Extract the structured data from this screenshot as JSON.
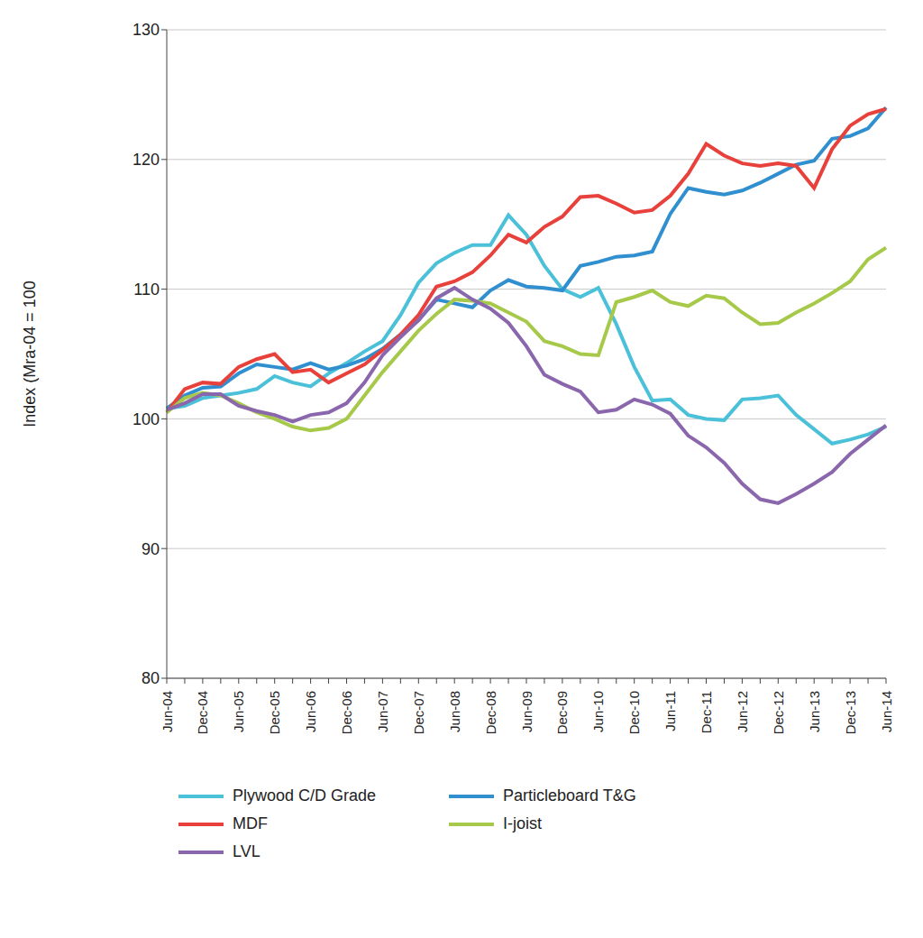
{
  "chart_data": {
    "type": "line",
    "y_label": "Index (Mra-04 = 100",
    "categories": [
      "Jun-04",
      null,
      "Dec-04",
      null,
      "Jun-05",
      null,
      "Dec-05",
      null,
      "Jun-06",
      null,
      "Dec-06",
      null,
      "Jun-07",
      null,
      "Dec-07",
      null,
      "Jun-08",
      null,
      "Dec-08",
      null,
      "Jun-09",
      null,
      "Dec-09",
      null,
      "Jun-10",
      null,
      "Dec-10",
      null,
      "Jun-11",
      null,
      "Dec-11",
      null,
      "Jun-12",
      null,
      "Dec-12",
      null,
      "Jun-13",
      null,
      "Dec-13",
      null,
      "Jun-14"
    ],
    "ylim": [
      80,
      130
    ],
    "yticks": [
      80,
      90,
      100,
      110,
      120,
      130
    ],
    "grid": true,
    "legend": "bottom",
    "series": [
      {
        "name": "Plywood C/D Grade",
        "color": "#4bc0d9",
        "values": [
          100.8,
          101,
          101.6,
          101.8,
          102,
          102.3,
          103.3,
          102.8,
          102.5,
          103.5,
          104.3,
          105.2,
          106,
          108,
          110.5,
          112,
          112.8,
          113.4,
          113.4,
          115.7,
          114.2,
          111.8,
          110,
          109.4,
          110.1,
          107.3,
          104,
          101.4,
          101.5,
          100.3,
          100,
          99.9,
          101.5,
          101.6,
          101.8,
          100.3,
          99.2,
          98.1,
          98.4,
          98.8,
          99.4
        ]
      },
      {
        "name": "Particleboard T&G",
        "color": "#2f8fcf",
        "values": [
          100.8,
          101.8,
          102.4,
          102.5,
          103.5,
          104.2,
          104,
          103.8,
          104.3,
          103.8,
          104.1,
          104.6,
          105.4,
          106.5,
          107.6,
          109.2,
          108.9,
          108.6,
          109.9,
          110.7,
          110.2,
          110.1,
          109.9,
          111.8,
          112.1,
          112.5,
          112.6,
          112.9,
          115.8,
          117.8,
          117.5,
          117.3,
          117.6,
          118.2,
          118.9,
          119.6,
          119.9,
          121.6,
          121.8,
          122.4,
          124
        ]
      },
      {
        "name": "MDF",
        "color": "#e8413c",
        "values": [
          100.5,
          102.3,
          102.8,
          102.7,
          104,
          104.6,
          105,
          103.6,
          103.8,
          102.8,
          103.5,
          104.2,
          105.3,
          106.5,
          108,
          110.2,
          110.6,
          111.3,
          112.6,
          114.2,
          113.6,
          114.8,
          115.6,
          117.1,
          117.2,
          116.6,
          115.9,
          116.1,
          117.2,
          118.9,
          121.2,
          120.3,
          119.7,
          119.5,
          119.7,
          119.5,
          117.8,
          120.8,
          122.6,
          123.5,
          123.9
        ]
      },
      {
        "name": "I-joist",
        "color": "#a6c94a",
        "values": [
          100.5,
          101.6,
          102,
          101.8,
          101.2,
          100.5,
          100,
          99.4,
          99.1,
          99.3,
          100,
          101.8,
          103.6,
          105.2,
          106.8,
          108.1,
          109.2,
          109.1,
          108.9,
          108.2,
          107.5,
          106,
          105.6,
          105,
          104.9,
          109,
          109.4,
          109.9,
          109,
          108.7,
          109.5,
          109.3,
          108.2,
          107.3,
          107.4,
          108.2,
          108.9,
          109.7,
          110.6,
          112.3,
          113.2
        ]
      },
      {
        "name": "LVL",
        "color": "#8a67ad",
        "values": [
          100.7,
          101.2,
          101.9,
          101.9,
          101,
          100.6,
          100.3,
          99.8,
          100.3,
          100.5,
          101.2,
          102.8,
          104.9,
          106.3,
          107.6,
          109.3,
          110.1,
          109.2,
          108.5,
          107.4,
          105.6,
          103.4,
          102.7,
          102.1,
          100.5,
          100.7,
          101.5,
          101.1,
          100.4,
          98.7,
          97.8,
          96.6,
          95,
          93.8,
          93.5,
          94.2,
          95,
          95.9,
          97.3,
          98.4,
          99.5
        ]
      }
    ]
  }
}
